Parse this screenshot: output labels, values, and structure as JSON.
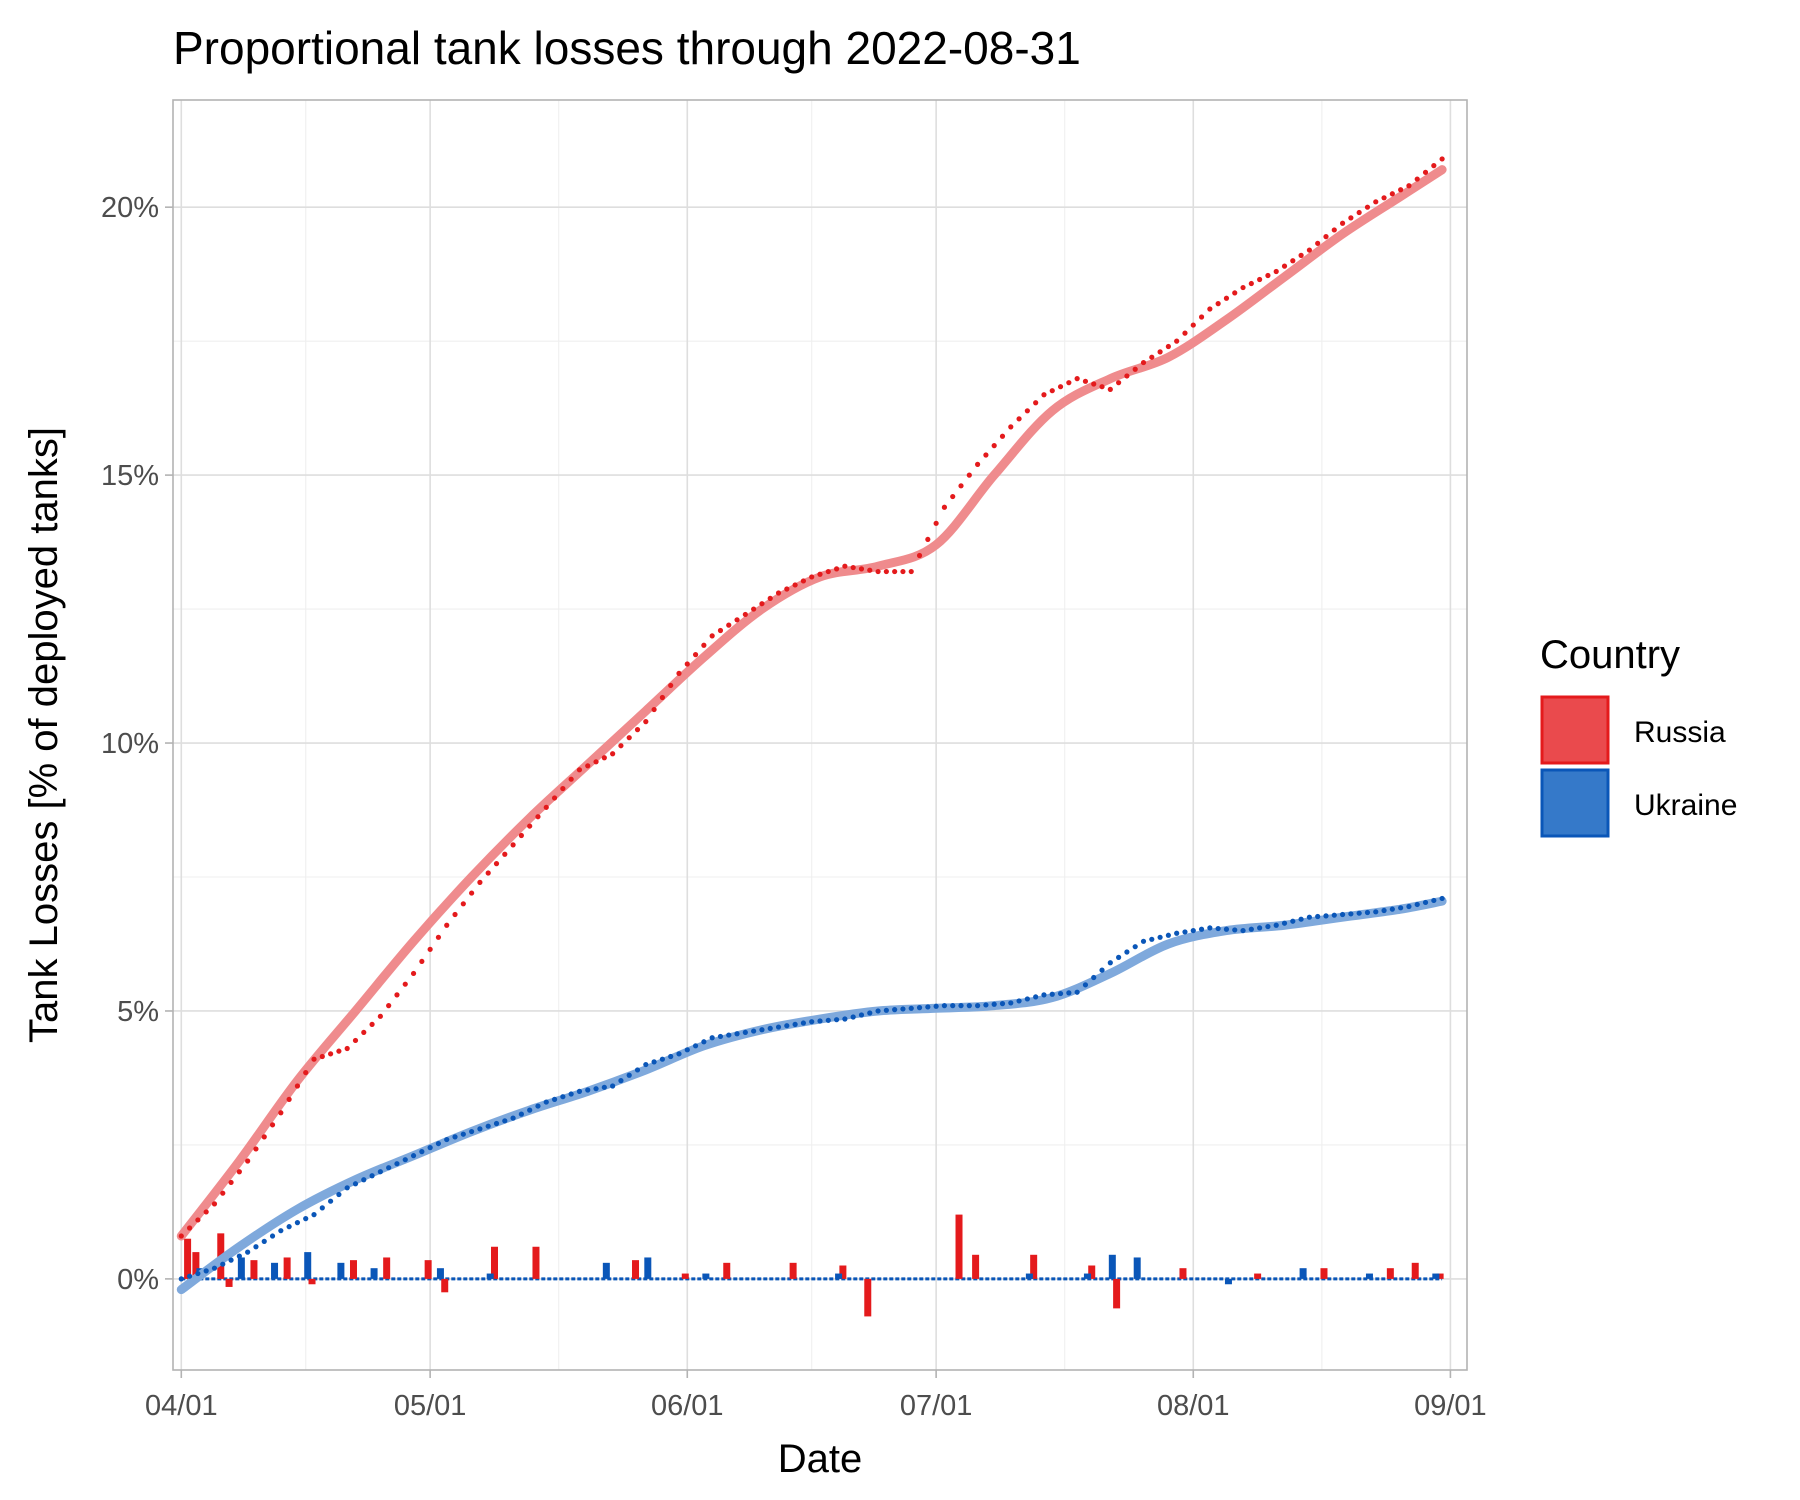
{
  "chart_data": {
    "type": "line",
    "title": "Proportional tank losses through 2022-08-31",
    "xlabel": "Date",
    "ylabel": "Tank Losses [% of deployed tanks]",
    "xlim": [
      "2022-03-31",
      "2022-09-03"
    ],
    "ylim": [
      -1.7,
      22.0
    ],
    "x_ticks": [
      {
        "date": "2022-04-01",
        "label": "04/01"
      },
      {
        "date": "2022-05-01",
        "label": "05/01"
      },
      {
        "date": "2022-06-01",
        "label": "06/01"
      },
      {
        "date": "2022-07-01",
        "label": "07/01"
      },
      {
        "date": "2022-08-01",
        "label": "08/01"
      },
      {
        "date": "2022-09-01",
        "label": "09/01"
      }
    ],
    "y_ticks": [
      {
        "value": 0,
        "label": "0%"
      },
      {
        "value": 5,
        "label": "5%"
      },
      {
        "value": 10,
        "label": "10%"
      },
      {
        "value": 15,
        "label": "15%"
      },
      {
        "value": 20,
        "label": "20%"
      }
    ],
    "grid": true,
    "legend": {
      "title": "Country",
      "placement": "right"
    },
    "series": [
      {
        "name": "Russia",
        "color": "#e41a1c",
        "smooth_color": "#ef8b8d",
        "cumulative": [
          [
            "2022-04-01",
            0.8
          ],
          [
            "2022-04-05",
            1.4
          ],
          [
            "2022-04-09",
            2.2
          ],
          [
            "2022-04-13",
            3.1
          ],
          [
            "2022-04-17",
            4.1
          ],
          [
            "2022-04-21",
            4.3
          ],
          [
            "2022-04-25",
            4.9
          ],
          [
            "2022-04-29",
            5.7
          ],
          [
            "2022-05-03",
            6.6
          ],
          [
            "2022-05-07",
            7.4
          ],
          [
            "2022-05-11",
            8.1
          ],
          [
            "2022-05-15",
            8.8
          ],
          [
            "2022-05-19",
            9.5
          ],
          [
            "2022-05-23",
            9.8
          ],
          [
            "2022-05-27",
            10.4
          ],
          [
            "2022-05-31",
            11.3
          ],
          [
            "2022-06-04",
            12.0
          ],
          [
            "2022-06-08",
            12.4
          ],
          [
            "2022-06-12",
            12.8
          ],
          [
            "2022-06-16",
            13.1
          ],
          [
            "2022-06-20",
            13.3
          ],
          [
            "2022-06-24",
            13.2
          ],
          [
            "2022-06-28",
            13.2
          ],
          [
            "2022-07-02",
            14.4
          ],
          [
            "2022-07-06",
            15.2
          ],
          [
            "2022-07-10",
            15.9
          ],
          [
            "2022-07-14",
            16.5
          ],
          [
            "2022-07-18",
            16.8
          ],
          [
            "2022-07-22",
            16.6
          ],
          [
            "2022-07-26",
            17.1
          ],
          [
            "2022-07-30",
            17.5
          ],
          [
            "2022-08-03",
            18.1
          ],
          [
            "2022-08-07",
            18.5
          ],
          [
            "2022-08-11",
            18.8
          ],
          [
            "2022-08-15",
            19.2
          ],
          [
            "2022-08-19",
            19.7
          ],
          [
            "2022-08-23",
            20.1
          ],
          [
            "2022-08-27",
            20.4
          ],
          [
            "2022-08-31",
            20.9
          ]
        ],
        "smoothed": [
          [
            "2022-04-01",
            0.8
          ],
          [
            "2022-04-08",
            2.2
          ],
          [
            "2022-04-15",
            3.7
          ],
          [
            "2022-04-22",
            5.0
          ],
          [
            "2022-04-29",
            6.3
          ],
          [
            "2022-05-06",
            7.5
          ],
          [
            "2022-05-13",
            8.6
          ],
          [
            "2022-05-20",
            9.6
          ],
          [
            "2022-05-27",
            10.6
          ],
          [
            "2022-06-03",
            11.6
          ],
          [
            "2022-06-10",
            12.5
          ],
          [
            "2022-06-17",
            13.1
          ],
          [
            "2022-06-24",
            13.3
          ],
          [
            "2022-07-01",
            13.7
          ],
          [
            "2022-07-08",
            15.0
          ],
          [
            "2022-07-15",
            16.2
          ],
          [
            "2022-07-22",
            16.8
          ],
          [
            "2022-07-29",
            17.2
          ],
          [
            "2022-08-05",
            17.9
          ],
          [
            "2022-08-12",
            18.7
          ],
          [
            "2022-08-19",
            19.5
          ],
          [
            "2022-08-26",
            20.2
          ],
          [
            "2022-08-31",
            20.7
          ]
        ],
        "daily": [
          [
            "2022-04-02",
            0.75
          ],
          [
            "2022-04-03",
            0.5
          ],
          [
            "2022-04-06",
            0.85
          ],
          [
            "2022-04-07",
            -0.15
          ],
          [
            "2022-04-10",
            0.35
          ],
          [
            "2022-04-14",
            0.4
          ],
          [
            "2022-04-17",
            -0.1
          ],
          [
            "2022-04-22",
            0.35
          ],
          [
            "2022-04-26",
            0.4
          ],
          [
            "2022-05-01",
            0.35
          ],
          [
            "2022-05-03",
            -0.25
          ],
          [
            "2022-05-09",
            0.6
          ],
          [
            "2022-05-14",
            0.6
          ],
          [
            "2022-05-26",
            0.35
          ],
          [
            "2022-06-01",
            0.1
          ],
          [
            "2022-06-06",
            0.3
          ],
          [
            "2022-06-14",
            0.3
          ],
          [
            "2022-06-20",
            0.25
          ],
          [
            "2022-06-23",
            -0.7
          ],
          [
            "2022-07-04",
            1.2
          ],
          [
            "2022-07-06",
            0.45
          ],
          [
            "2022-07-13",
            0.45
          ],
          [
            "2022-07-20",
            0.25
          ],
          [
            "2022-07-23",
            -0.55
          ],
          [
            "2022-07-31",
            0.2
          ],
          [
            "2022-08-09",
            0.1
          ],
          [
            "2022-08-17",
            0.2
          ],
          [
            "2022-08-25",
            0.2
          ],
          [
            "2022-08-28",
            0.3
          ],
          [
            "2022-08-31",
            0.1
          ]
        ]
      },
      {
        "name": "Ukraine",
        "color": "#0a56b8",
        "smooth_color": "#7fa9dc",
        "cumulative": [
          [
            "2022-04-01",
            0.0
          ],
          [
            "2022-04-05",
            0.2
          ],
          [
            "2022-04-09",
            0.5
          ],
          [
            "2022-04-13",
            0.9
          ],
          [
            "2022-04-17",
            1.2
          ],
          [
            "2022-04-21",
            1.7
          ],
          [
            "2022-04-25",
            2.0
          ],
          [
            "2022-04-29",
            2.3
          ],
          [
            "2022-05-03",
            2.6
          ],
          [
            "2022-05-07",
            2.8
          ],
          [
            "2022-05-11",
            3.0
          ],
          [
            "2022-05-15",
            3.3
          ],
          [
            "2022-05-19",
            3.5
          ],
          [
            "2022-05-23",
            3.6
          ],
          [
            "2022-05-27",
            4.0
          ],
          [
            "2022-05-31",
            4.2
          ],
          [
            "2022-06-04",
            4.5
          ],
          [
            "2022-06-08",
            4.6
          ],
          [
            "2022-06-12",
            4.7
          ],
          [
            "2022-06-16",
            4.8
          ],
          [
            "2022-06-20",
            4.85
          ],
          [
            "2022-06-24",
            5.0
          ],
          [
            "2022-06-28",
            5.05
          ],
          [
            "2022-07-02",
            5.1
          ],
          [
            "2022-07-06",
            5.1
          ],
          [
            "2022-07-10",
            5.15
          ],
          [
            "2022-07-14",
            5.3
          ],
          [
            "2022-07-18",
            5.35
          ],
          [
            "2022-07-22",
            5.9
          ],
          [
            "2022-07-26",
            6.3
          ],
          [
            "2022-07-30",
            6.45
          ],
          [
            "2022-08-03",
            6.55
          ],
          [
            "2022-08-07",
            6.5
          ],
          [
            "2022-08-11",
            6.6
          ],
          [
            "2022-08-15",
            6.75
          ],
          [
            "2022-08-19",
            6.8
          ],
          [
            "2022-08-23",
            6.85
          ],
          [
            "2022-08-27",
            6.95
          ],
          [
            "2022-08-31",
            7.1
          ]
        ],
        "smoothed": [
          [
            "2022-04-01",
            -0.2
          ],
          [
            "2022-04-08",
            0.6
          ],
          [
            "2022-04-15",
            1.3
          ],
          [
            "2022-04-22",
            1.85
          ],
          [
            "2022-04-29",
            2.3
          ],
          [
            "2022-05-06",
            2.75
          ],
          [
            "2022-05-13",
            3.15
          ],
          [
            "2022-05-20",
            3.5
          ],
          [
            "2022-05-27",
            3.9
          ],
          [
            "2022-06-03",
            4.35
          ],
          [
            "2022-06-10",
            4.65
          ],
          [
            "2022-06-17",
            4.85
          ],
          [
            "2022-06-24",
            5.0
          ],
          [
            "2022-07-01",
            5.05
          ],
          [
            "2022-07-08",
            5.1
          ],
          [
            "2022-07-15",
            5.25
          ],
          [
            "2022-07-22",
            5.7
          ],
          [
            "2022-07-29",
            6.25
          ],
          [
            "2022-08-05",
            6.5
          ],
          [
            "2022-08-12",
            6.6
          ],
          [
            "2022-08-19",
            6.75
          ],
          [
            "2022-08-26",
            6.9
          ],
          [
            "2022-08-31",
            7.05
          ]
        ],
        "daily": [
          [
            "2022-04-03",
            0.2
          ],
          [
            "2022-04-08",
            0.4
          ],
          [
            "2022-04-12",
            0.3
          ],
          [
            "2022-04-16",
            0.5
          ],
          [
            "2022-04-20",
            0.3
          ],
          [
            "2022-04-24",
            0.2
          ],
          [
            "2022-05-02",
            0.2
          ],
          [
            "2022-05-08",
            0.1
          ],
          [
            "2022-05-22",
            0.3
          ],
          [
            "2022-05-27",
            0.4
          ],
          [
            "2022-06-03",
            0.1
          ],
          [
            "2022-06-19",
            0.1
          ],
          [
            "2022-07-12",
            0.1
          ],
          [
            "2022-07-19",
            0.1
          ],
          [
            "2022-07-22",
            0.45
          ],
          [
            "2022-07-25",
            0.4
          ],
          [
            "2022-08-05",
            -0.1
          ],
          [
            "2022-08-14",
            0.2
          ],
          [
            "2022-08-22",
            0.1
          ],
          [
            "2022-08-30",
            0.1
          ]
        ]
      }
    ]
  }
}
